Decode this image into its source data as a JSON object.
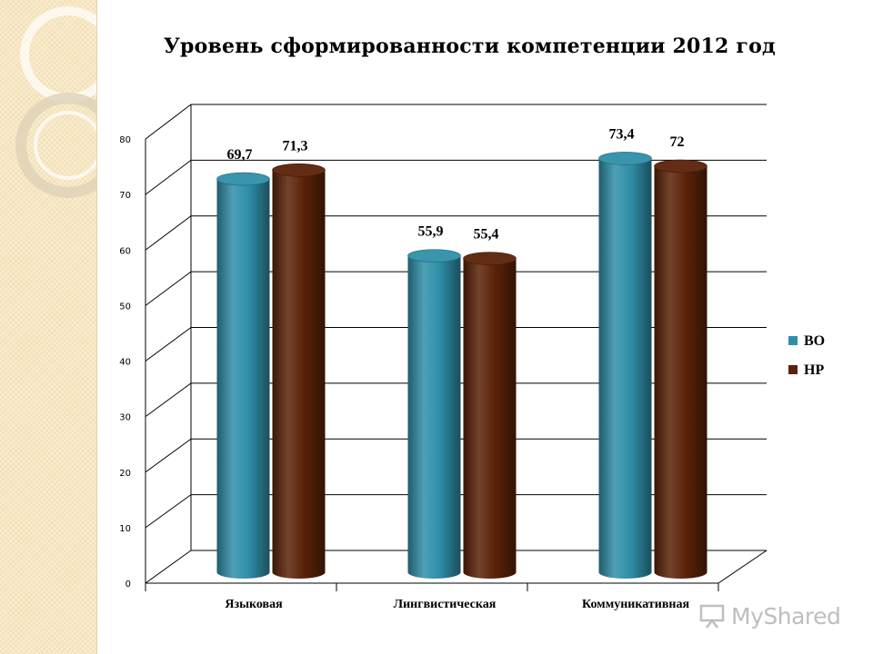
{
  "chart_data": {
    "type": "bar",
    "title": "Уровень сформированности компетенции 2012 год",
    "categories": [
      "Языковая",
      "Лингвистическая",
      "Коммуникативная"
    ],
    "series": [
      {
        "name": "ВО",
        "values": [
          69.7,
          55.9,
          73.4
        ],
        "labels": [
          "69,7",
          "55,9",
          "73,4"
        ],
        "color": "#2f8ea8"
      },
      {
        "name": "НР",
        "values": [
          71.3,
          55.4,
          72
        ],
        "labels": [
          "71,3",
          "55,4",
          "72"
        ],
        "color": "#5a2208"
      }
    ],
    "ylim": [
      0,
      80
    ],
    "yticks": [
      "0",
      "10",
      "20",
      "30",
      "40",
      "50",
      "60",
      "70",
      "80"
    ],
    "grid": true,
    "legend_position": "right",
    "style": "3d-cylinder"
  },
  "watermark": {
    "icon": "presentation-icon",
    "text": "MyShared"
  }
}
